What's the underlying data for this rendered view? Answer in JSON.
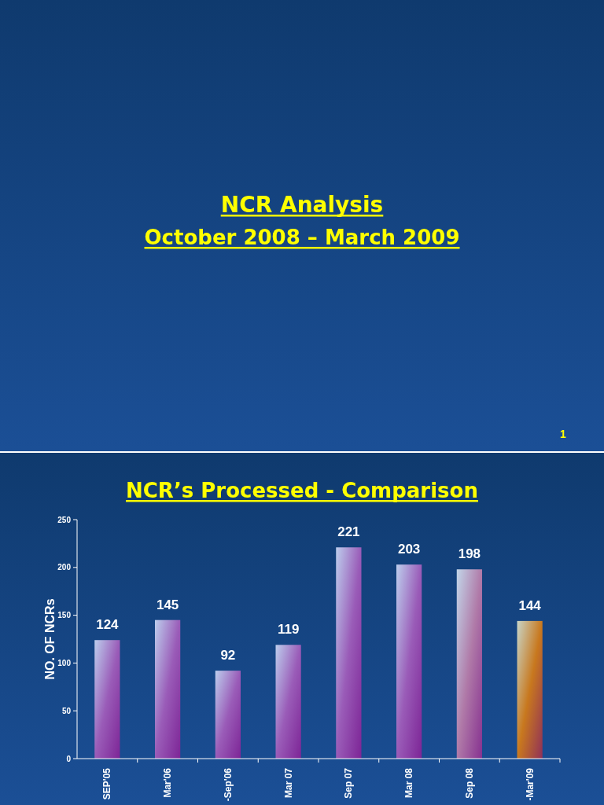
{
  "chart_data": {
    "type": "bar",
    "title": "NCR’s Processed - Comparison",
    "ylabel": "NO. OF NCRs",
    "annotations": [
      "NCR Analysis",
      "October 2008 – March 2009",
      "1"
    ],
    "categories": [
      "SEP'05",
      "Mar'06",
      "-Sep'06",
      "Mar 07",
      "Sep 07",
      "Mar 08",
      "Sep 08",
      "-Mar'09"
    ],
    "values": [
      124,
      145,
      92,
      119,
      221,
      203,
      198,
      144
    ],
    "colors": [
      "#9a5cb8",
      "#9a5cb8",
      "#9a5cb8",
      "#9a5cb8",
      "#9a5cb8",
      "#9a5cb8",
      "#b07aa8",
      "#c8781e"
    ],
    "ylim": [
      0,
      250
    ],
    "yticks": [
      0,
      50,
      100,
      150,
      200,
      250
    ],
    "data_labels": true,
    "grid": false
  }
}
